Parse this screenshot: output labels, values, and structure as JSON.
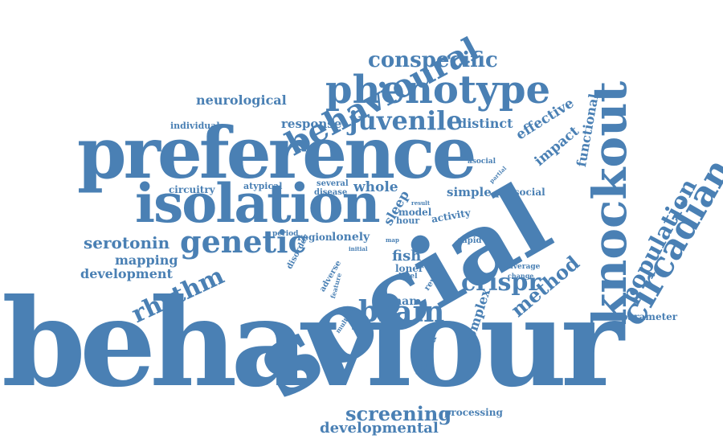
{
  "color": "#4a80b4",
  "words": [
    "behaviour",
    "social",
    "preference",
    "knockout",
    "isolation",
    "phenotype",
    "behavioural",
    "circadian",
    "genetic",
    "juvenile",
    "population",
    "brain",
    "crispr",
    "rhythm",
    "conspecific",
    "screening",
    "method",
    "serotonin",
    "fish",
    "development",
    "developmental",
    "mapping",
    "neurological",
    "response",
    "distinct",
    "effective",
    "impact",
    "functional",
    "individual",
    "asocial",
    "circuitry",
    "atypical",
    "several",
    "disease",
    "whole",
    "sleep",
    "simple",
    "prosocial",
    "model",
    "activity",
    "result",
    "hour",
    "period",
    "region",
    "lonely",
    "rapid",
    "map",
    "initial",
    "disorder",
    "loner",
    "level",
    "reveal",
    "adverse",
    "feature",
    "multiple",
    "human",
    "complex",
    "isolated",
    "partial",
    "average",
    "change",
    "processing",
    "parameter"
  ]
}
